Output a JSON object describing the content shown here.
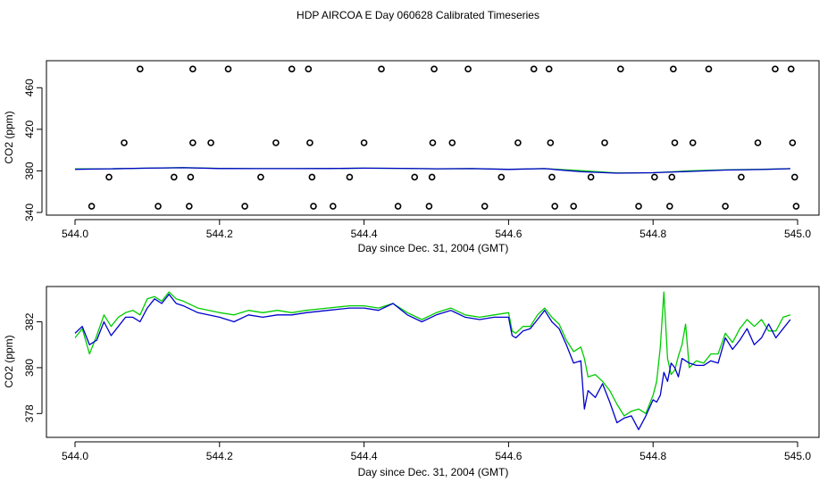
{
  "title": "HDP AIRCOA E  Day 060628  Calibrated Timeseries",
  "colors": {
    "series_green": "#00cc00",
    "series_blue": "#0000cc",
    "axis": "#000000",
    "calibration_points": "#000000"
  },
  "chart_data": [
    {
      "type": "scatter",
      "xlabel": "Day since Dec. 31, 2004 (GMT)",
      "ylabel": "CO2 (ppm)",
      "xlim": [
        544.0,
        545.0
      ],
      "ylim": [
        340,
        480
      ],
      "x_ticks": [
        "544.0",
        "544.2",
        "544.4",
        "544.6",
        "544.8",
        "545.0"
      ],
      "y_ticks": [
        "340",
        "380",
        "420",
        "460"
      ],
      "calibration_points": [
        {
          "x": 544.09,
          "y": 478
        },
        {
          "x": 544.163,
          "y": 478
        },
        {
          "x": 544.212,
          "y": 478
        },
        {
          "x": 544.3,
          "y": 478
        },
        {
          "x": 544.323,
          "y": 478
        },
        {
          "x": 544.424,
          "y": 478
        },
        {
          "x": 544.497,
          "y": 478
        },
        {
          "x": 544.544,
          "y": 478
        },
        {
          "x": 544.635,
          "y": 478
        },
        {
          "x": 544.656,
          "y": 478
        },
        {
          "x": 544.755,
          "y": 478
        },
        {
          "x": 544.828,
          "y": 478
        },
        {
          "x": 544.877,
          "y": 478
        },
        {
          "x": 544.969,
          "y": 478
        },
        {
          "x": 544.991,
          "y": 478
        },
        {
          "x": 544.068,
          "y": 407
        },
        {
          "x": 544.163,
          "y": 407
        },
        {
          "x": 544.188,
          "y": 407
        },
        {
          "x": 544.278,
          "y": 407
        },
        {
          "x": 544.325,
          "y": 407
        },
        {
          "x": 544.4,
          "y": 407
        },
        {
          "x": 544.495,
          "y": 407
        },
        {
          "x": 544.522,
          "y": 407
        },
        {
          "x": 544.613,
          "y": 407
        },
        {
          "x": 544.658,
          "y": 407
        },
        {
          "x": 544.733,
          "y": 407
        },
        {
          "x": 544.83,
          "y": 407
        },
        {
          "x": 544.855,
          "y": 407
        },
        {
          "x": 544.945,
          "y": 407
        },
        {
          "x": 544.993,
          "y": 407
        },
        {
          "x": 544.047,
          "y": 374
        },
        {
          "x": 544.137,
          "y": 374
        },
        {
          "x": 544.16,
          "y": 374
        },
        {
          "x": 544.257,
          "y": 374
        },
        {
          "x": 544.328,
          "y": 374
        },
        {
          "x": 544.38,
          "y": 374
        },
        {
          "x": 544.47,
          "y": 374
        },
        {
          "x": 544.494,
          "y": 374
        },
        {
          "x": 544.59,
          "y": 374
        },
        {
          "x": 544.66,
          "y": 374
        },
        {
          "x": 544.714,
          "y": 374
        },
        {
          "x": 544.802,
          "y": 374
        },
        {
          "x": 544.826,
          "y": 374
        },
        {
          "x": 544.922,
          "y": 374
        },
        {
          "x": 544.996,
          "y": 374
        },
        {
          "x": 544.023,
          "y": 346
        },
        {
          "x": 544.115,
          "y": 346
        },
        {
          "x": 544.158,
          "y": 346
        },
        {
          "x": 544.235,
          "y": 346
        },
        {
          "x": 544.33,
          "y": 346
        },
        {
          "x": 544.357,
          "y": 346
        },
        {
          "x": 544.447,
          "y": 346
        },
        {
          "x": 544.49,
          "y": 346
        },
        {
          "x": 544.567,
          "y": 346
        },
        {
          "x": 544.664,
          "y": 346
        },
        {
          "x": 544.69,
          "y": 346
        },
        {
          "x": 544.78,
          "y": 346
        },
        {
          "x": 544.823,
          "y": 346
        },
        {
          "x": 544.9,
          "y": 346
        },
        {
          "x": 544.998,
          "y": 346
        }
      ],
      "series": [
        {
          "color": "#00cc00",
          "x": [
            544.0,
            544.05,
            544.1,
            544.15,
            544.2,
            544.25,
            544.3,
            544.35,
            544.4,
            544.45,
            544.5,
            544.55,
            544.6,
            544.65,
            544.7,
            544.75,
            544.8,
            544.85,
            544.9,
            544.95,
            544.99
          ],
          "values": [
            382,
            382,
            382.6,
            383.1,
            382.4,
            382.2,
            382.2,
            382.3,
            382.6,
            382.4,
            382,
            382.2,
            381.6,
            382.2,
            380.2,
            378,
            378.2,
            380,
            381,
            381.5,
            382.2
          ]
        },
        {
          "color": "#0000cc",
          "x": [
            544.0,
            544.05,
            544.1,
            544.15,
            544.2,
            544.25,
            544.3,
            544.35,
            544.4,
            544.45,
            544.5,
            544.55,
            544.6,
            544.65,
            544.7,
            544.75,
            544.8,
            544.85,
            544.9,
            544.95,
            544.99
          ],
          "values": [
            381.5,
            382,
            382.6,
            383,
            382.3,
            382.2,
            382.2,
            382.3,
            382.6,
            382.4,
            382,
            382.2,
            381.4,
            382.2,
            379.2,
            377.8,
            378.2,
            379.4,
            380.8,
            381.3,
            382.1
          ]
        }
      ]
    },
    {
      "type": "line",
      "xlabel": "Day since Dec. 31, 2004 (GMT)",
      "ylabel": "CO2 (ppm)",
      "xlim": [
        544.0,
        545.0
      ],
      "ylim": [
        377,
        383.5
      ],
      "x_ticks": [
        "544.0",
        "544.2",
        "544.4",
        "544.6",
        "544.8",
        "545.0"
      ],
      "y_ticks": [
        "378",
        "380",
        "382"
      ],
      "series": [
        {
          "color": "#00cc00",
          "x": [
            544.0,
            544.01,
            544.02,
            544.03,
            544.04,
            544.05,
            544.06,
            544.07,
            544.08,
            544.09,
            544.1,
            544.11,
            544.12,
            544.13,
            544.14,
            544.15,
            544.17,
            544.2,
            544.22,
            544.24,
            544.26,
            544.28,
            544.3,
            544.32,
            544.35,
            544.38,
            544.4,
            544.42,
            544.44,
            544.46,
            544.48,
            544.5,
            544.52,
            544.54,
            544.56,
            544.58,
            544.6,
            544.605,
            544.61,
            544.62,
            544.63,
            544.64,
            544.65,
            544.66,
            544.67,
            544.68,
            544.69,
            544.7,
            544.705,
            544.71,
            544.72,
            544.73,
            544.74,
            544.75,
            544.76,
            544.77,
            544.78,
            544.79,
            544.8,
            544.805,
            544.81,
            544.815,
            544.82,
            544.825,
            544.83,
            544.835,
            544.84,
            544.845,
            544.85,
            544.86,
            544.87,
            544.88,
            544.89,
            544.9,
            544.91,
            544.92,
            544.93,
            544.94,
            544.95,
            544.96,
            544.97,
            544.98,
            544.99
          ],
          "values": [
            381.3,
            381.7,
            380.6,
            381.4,
            382.3,
            381.8,
            382.2,
            382.4,
            382.5,
            382.3,
            383,
            383.1,
            382.9,
            383.3,
            383,
            382.9,
            382.6,
            382.4,
            382.3,
            382.5,
            382.4,
            382.5,
            382.4,
            382.5,
            382.6,
            382.7,
            382.7,
            382.6,
            382.8,
            382.4,
            382.1,
            382.4,
            382.6,
            382.3,
            382.2,
            382.3,
            382.4,
            381.6,
            381.5,
            381.8,
            381.8,
            382.3,
            382.6,
            382.2,
            381.9,
            381.2,
            380.7,
            380.9,
            380.4,
            379.6,
            379.7,
            379.4,
            379,
            378.4,
            377.9,
            378.1,
            378.2,
            378,
            378.8,
            379.4,
            380.9,
            383.3,
            380.4,
            379.7,
            379.9,
            380.5,
            381,
            381.9,
            380,
            380.3,
            380.2,
            380.6,
            380.6,
            381.5,
            381.1,
            381.7,
            382.1,
            381.8,
            382.1,
            381.6,
            381.6,
            382.2,
            382.3
          ]
        },
        {
          "color": "#0000cc",
          "x": [
            544.0,
            544.01,
            544.02,
            544.03,
            544.04,
            544.05,
            544.06,
            544.07,
            544.08,
            544.09,
            544.1,
            544.11,
            544.12,
            544.13,
            544.14,
            544.15,
            544.17,
            544.2,
            544.22,
            544.24,
            544.26,
            544.28,
            544.3,
            544.32,
            544.35,
            544.38,
            544.4,
            544.42,
            544.44,
            544.46,
            544.48,
            544.5,
            544.52,
            544.54,
            544.56,
            544.58,
            544.6,
            544.605,
            544.61,
            544.62,
            544.63,
            544.64,
            544.65,
            544.66,
            544.67,
            544.68,
            544.69,
            544.7,
            544.705,
            544.71,
            544.72,
            544.73,
            544.74,
            544.75,
            544.76,
            544.77,
            544.78,
            544.79,
            544.8,
            544.805,
            544.81,
            544.815,
            544.82,
            544.825,
            544.83,
            544.835,
            544.84,
            544.845,
            544.85,
            544.86,
            544.87,
            544.88,
            544.89,
            544.9,
            544.91,
            544.92,
            544.93,
            544.94,
            544.95,
            544.96,
            544.97,
            544.98,
            544.99
          ],
          "values": [
            381.5,
            381.8,
            381,
            381.2,
            382,
            381.4,
            381.8,
            382.2,
            382.2,
            382,
            382.6,
            383,
            382.8,
            383.2,
            382.8,
            382.7,
            382.4,
            382.2,
            382,
            382.3,
            382.2,
            382.3,
            382.3,
            382.4,
            382.5,
            382.6,
            382.6,
            382.5,
            382.8,
            382.3,
            382,
            382.3,
            382.5,
            382.2,
            382.1,
            382.2,
            382.2,
            381.4,
            381.3,
            381.6,
            381.7,
            382.1,
            382.5,
            382,
            381.7,
            381,
            380.2,
            380.3,
            378.2,
            379,
            378.7,
            379.3,
            378.5,
            377.6,
            377.8,
            377.9,
            377.3,
            377.9,
            378.6,
            378.5,
            378.8,
            379.8,
            379.4,
            380.2,
            380,
            379.6,
            380.4,
            380.3,
            380.2,
            380.1,
            380.1,
            380.3,
            380.2,
            381.3,
            380.8,
            381.2,
            381.7,
            381,
            381.3,
            381.9,
            381.3,
            381.7,
            382.1
          ]
        }
      ]
    }
  ]
}
